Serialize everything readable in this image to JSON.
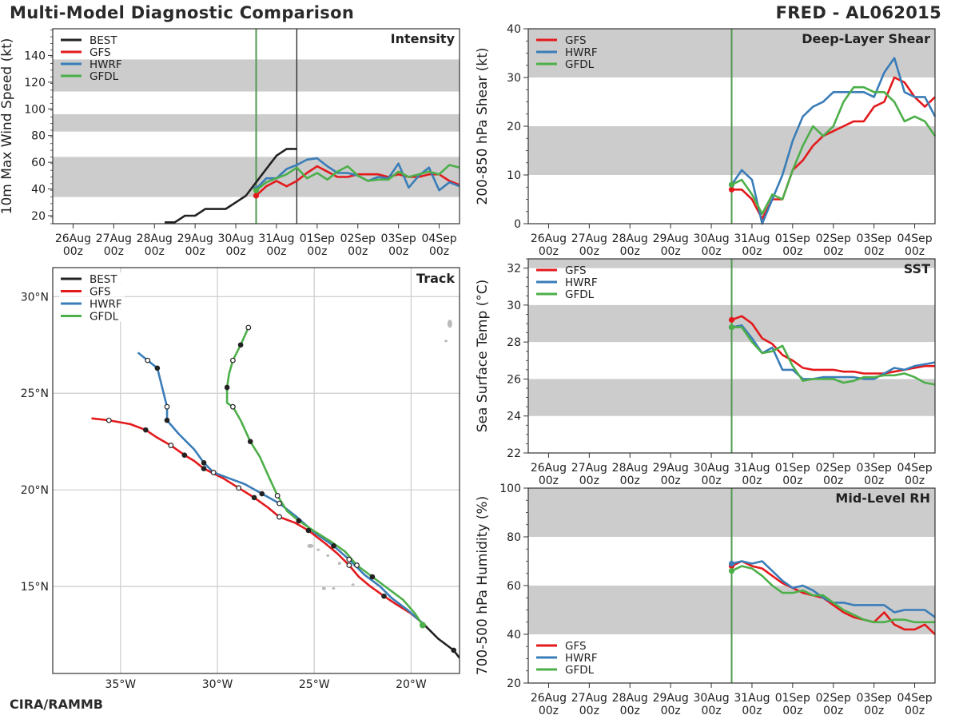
{
  "header": {
    "title": "Multi-Model Diagnostic Comparison",
    "storm": "FRED - AL062015"
  },
  "footer": {
    "credit": "CIRA/RAMMB"
  },
  "colors": {
    "BEST": "#222222",
    "GFS": "#e31a1c",
    "HWRF": "#3a7db8",
    "GFDL": "#4daf4a",
    "shade": "#cccccc",
    "grid": "#cccccc",
    "init_line": "#4f9a4f"
  },
  "time_axis": {
    "ticks": [
      {
        "t": 0,
        "day": "26Aug",
        "hr": "00z"
      },
      {
        "t": 1,
        "day": "27Aug",
        "hr": "00z"
      },
      {
        "t": 2,
        "day": "28Aug",
        "hr": "00z"
      },
      {
        "t": 3,
        "day": "29Aug",
        "hr": "00z"
      },
      {
        "t": 4,
        "day": "30Aug",
        "hr": "00z"
      },
      {
        "t": 5,
        "day": "31Aug",
        "hr": "00z"
      },
      {
        "t": 6,
        "day": "01Sep",
        "hr": "00z"
      },
      {
        "t": 7,
        "day": "02Sep",
        "hr": "00z"
      },
      {
        "t": 8,
        "day": "03Sep",
        "hr": "00z"
      },
      {
        "t": 9,
        "day": "04Sep",
        "hr": "00z"
      }
    ],
    "range": [
      -0.5,
      9.5
    ],
    "init_time": 4.5,
    "latest_time": 5.5
  },
  "chart_data": [
    {
      "id": "intensity",
      "type": "line",
      "title": "Intensity",
      "ylabel": "10m Max Wind Speed (kt)",
      "ylim": [
        14,
        160
      ],
      "yticks": [
        20,
        40,
        60,
        80,
        100,
        120,
        140
      ],
      "bands": [
        [
          34,
          64
        ],
        [
          83,
          96
        ],
        [
          113,
          137
        ]
      ],
      "legend": {
        "position": "top-left",
        "entries": [
          "BEST",
          "GFS",
          "HWRF",
          "GFDL"
        ]
      },
      "series": [
        {
          "name": "BEST",
          "t": [
            2.25,
            2.5,
            2.75,
            3.0,
            3.25,
            3.5,
            3.75,
            4.0,
            4.25,
            4.5,
            4.75,
            5.0,
            5.25,
            5.5
          ],
          "v": [
            15,
            15,
            20,
            20,
            25,
            25,
            25,
            30,
            35,
            45,
            55,
            65,
            70,
            70
          ]
        },
        {
          "name": "GFS",
          "t": [
            4.5,
            4.75,
            5.0,
            5.25,
            5.5,
            5.75,
            6.0,
            6.25,
            6.5,
            6.75,
            7.0,
            7.25,
            7.5,
            7.75,
            8.0,
            8.25,
            8.5,
            8.75,
            9.0,
            9.25,
            9.5
          ],
          "v": [
            35,
            42,
            46,
            42,
            46,
            52,
            57,
            53,
            49,
            49,
            51,
            51,
            51,
            49,
            51,
            49,
            49,
            51,
            51,
            46,
            43
          ]
        },
        {
          "name": "HWRF",
          "t": [
            4.5,
            4.75,
            5.0,
            5.25,
            5.5,
            5.75,
            6.0,
            6.25,
            6.5,
            6.75,
            7.0,
            7.25,
            7.5,
            7.75,
            8.0,
            8.25,
            8.5,
            8.75,
            9.0,
            9.25,
            9.5
          ],
          "v": [
            40,
            48,
            48,
            55,
            58,
            62,
            63,
            57,
            52,
            52,
            50,
            46,
            49,
            48,
            59,
            41,
            50,
            56,
            39,
            45,
            42
          ]
        },
        {
          "name": "GFDL",
          "t": [
            4.5,
            4.75,
            5.0,
            5.25,
            5.5,
            5.75,
            6.0,
            6.25,
            6.5,
            6.75,
            7.0,
            7.25,
            7.5,
            7.75,
            8.0,
            8.25,
            8.5,
            8.75,
            9.0,
            9.25,
            9.5
          ],
          "v": [
            39,
            45,
            48,
            51,
            56,
            48,
            52,
            47,
            53,
            57,
            50,
            46,
            47,
            47,
            53,
            49,
            51,
            53,
            51,
            58,
            56
          ]
        }
      ]
    },
    {
      "id": "shear",
      "type": "line",
      "title": "Deep-Layer Shear",
      "ylabel": "200-850 hPa Shear (kt)",
      "ylim": [
        0,
        40
      ],
      "yticks": [
        0,
        10,
        20,
        30,
        40
      ],
      "bands": [
        [
          10,
          20
        ],
        [
          30,
          40
        ]
      ],
      "legend": {
        "position": "top-left",
        "entries": [
          "GFS",
          "HWRF",
          "GFDL"
        ]
      },
      "series": [
        {
          "name": "GFS",
          "t": [
            4.5,
            4.75,
            5.0,
            5.25,
            5.5,
            5.75,
            6.0,
            6.25,
            6.5,
            6.75,
            7.0,
            7.25,
            7.5,
            7.75,
            8.0,
            8.25,
            8.5,
            8.75,
            9.0,
            9.25,
            9.5
          ],
          "v": [
            7,
            7,
            5,
            1,
            5,
            5,
            11,
            13,
            16,
            18,
            19,
            20,
            21,
            21,
            24,
            25,
            30,
            29,
            26,
            24,
            26
          ]
        },
        {
          "name": "HWRF",
          "t": [
            4.5,
            4.75,
            5.0,
            5.25,
            5.5,
            5.75,
            6.0,
            6.25,
            6.5,
            6.75,
            7.0,
            7.25,
            7.5,
            7.75,
            8.0,
            8.25,
            8.5,
            8.75,
            9.0,
            9.25,
            9.5
          ],
          "v": [
            8,
            11,
            9,
            0,
            5,
            10,
            17,
            22,
            24,
            25,
            27,
            27,
            27,
            27,
            26,
            31,
            34,
            27,
            26,
            26,
            22
          ]
        },
        {
          "name": "GFDL",
          "t": [
            4.5,
            4.75,
            5.0,
            5.25,
            5.5,
            5.75,
            6.0,
            6.25,
            6.5,
            6.75,
            7.0,
            7.25,
            7.5,
            7.75,
            8.0,
            8.25,
            8.5,
            8.75,
            9.0,
            9.25,
            9.5
          ],
          "v": [
            8,
            9,
            6,
            2,
            6,
            5,
            11,
            16,
            20,
            18,
            20,
            25,
            28,
            28,
            27,
            27,
            25,
            21,
            22,
            21,
            18
          ]
        }
      ]
    },
    {
      "id": "sst",
      "type": "line",
      "title": "SST",
      "ylabel": "Sea Surface Temp (°C)",
      "ylim": [
        22,
        32.5
      ],
      "yticks": [
        22,
        24,
        26,
        28,
        30,
        32
      ],
      "bands": [
        [
          24,
          26
        ],
        [
          28,
          30
        ],
        [
          32,
          32.5
        ]
      ],
      "legend": {
        "position": "top-left",
        "entries": [
          "GFS",
          "HWRF",
          "GFDL"
        ]
      },
      "series": [
        {
          "name": "GFS",
          "t": [
            4.5,
            4.75,
            5.0,
            5.25,
            5.5,
            5.75,
            6.0,
            6.25,
            6.5,
            6.75,
            7.0,
            7.25,
            7.5,
            7.75,
            8.0,
            8.25,
            8.5,
            8.75,
            9.0,
            9.25,
            9.5
          ],
          "v": [
            29.2,
            29.4,
            29.0,
            28.2,
            27.9,
            27.3,
            27.0,
            26.6,
            26.5,
            26.5,
            26.5,
            26.4,
            26.4,
            26.3,
            26.3,
            26.3,
            26.4,
            26.5,
            26.6,
            26.7,
            26.7
          ]
        },
        {
          "name": "HWRF",
          "t": [
            4.5,
            4.75,
            5.0,
            5.25,
            5.5,
            5.75,
            6.0,
            6.25,
            6.5,
            6.75,
            7.0,
            7.25,
            7.5,
            7.75,
            8.0,
            8.25,
            8.5,
            8.75,
            9.0,
            9.25,
            9.5
          ],
          "v": [
            28.8,
            28.9,
            28.2,
            27.4,
            27.7,
            26.5,
            26.5,
            26.0,
            26.0,
            26.1,
            26.1,
            26.1,
            26.1,
            26.0,
            26.0,
            26.3,
            26.6,
            26.5,
            26.7,
            26.8,
            26.9
          ]
        },
        {
          "name": "GFDL",
          "t": [
            4.5,
            4.75,
            5.0,
            5.25,
            5.5,
            5.75,
            6.0,
            6.25,
            6.5,
            6.75,
            7.0,
            7.25,
            7.5,
            7.75,
            8.0,
            8.25,
            8.5,
            8.75,
            9.0,
            9.25,
            9.5
          ],
          "v": [
            28.8,
            28.8,
            28.0,
            27.4,
            27.5,
            27.8,
            26.7,
            25.9,
            26.0,
            26.0,
            26.0,
            25.8,
            25.9,
            26.1,
            26.1,
            26.2,
            26.2,
            26.3,
            26.1,
            25.8,
            25.7
          ]
        }
      ]
    },
    {
      "id": "rh",
      "type": "line",
      "title": "Mid-Level RH",
      "ylabel": "700-500 hPa Humidity (%)",
      "ylim": [
        20,
        100
      ],
      "yticks": [
        20,
        40,
        60,
        80,
        100
      ],
      "bands": [
        [
          40,
          60
        ],
        [
          80,
          100
        ]
      ],
      "legend": {
        "position": "bottom-left",
        "entries": [
          "GFS",
          "HWRF",
          "GFDL"
        ]
      },
      "series": [
        {
          "name": "GFS",
          "t": [
            4.5,
            4.75,
            5.0,
            5.25,
            5.5,
            5.75,
            6.0,
            6.25,
            6.5,
            6.75,
            7.0,
            7.25,
            7.5,
            7.75,
            8.0,
            8.25,
            8.5,
            8.75,
            9.0,
            9.25,
            9.5
          ],
          "v": [
            68,
            70,
            68,
            67,
            64,
            61,
            59,
            57,
            56,
            55,
            52,
            49,
            47,
            46,
            45,
            49,
            44,
            42,
            42,
            44,
            40
          ]
        },
        {
          "name": "HWRF",
          "t": [
            4.5,
            4.75,
            5.0,
            5.25,
            5.5,
            5.75,
            6.0,
            6.25,
            6.5,
            6.75,
            7.0,
            7.25,
            7.5,
            7.75,
            8.0,
            8.25,
            8.5,
            8.75,
            9.0,
            9.25,
            9.5
          ],
          "v": [
            69,
            70,
            69,
            70,
            66,
            62,
            59,
            60,
            58,
            55,
            53,
            53,
            52,
            52,
            52,
            52,
            49,
            50,
            50,
            50,
            47
          ]
        },
        {
          "name": "GFDL",
          "t": [
            4.5,
            4.75,
            5.0,
            5.25,
            5.5,
            5.75,
            6.0,
            6.25,
            6.5,
            6.75,
            7.0,
            7.25,
            7.5,
            7.75,
            8.0,
            8.25,
            8.5,
            8.75,
            9.0,
            9.25,
            9.5
          ],
          "v": [
            66,
            68,
            67,
            64,
            60,
            57,
            57,
            58,
            56,
            56,
            53,
            50,
            48,
            46,
            45,
            45,
            46,
            46,
            45,
            45,
            45
          ]
        }
      ]
    },
    {
      "id": "track",
      "type": "line",
      "title": "Track",
      "xlim": [
        -38.5,
        -17.5
      ],
      "ylim": [
        10.5,
        31.5
      ],
      "xticks": [
        {
          "v": -35,
          "label": "35°W"
        },
        {
          "v": -30,
          "label": "30°W"
        },
        {
          "v": -25,
          "label": "25°W"
        },
        {
          "v": -20,
          "label": "20°W"
        }
      ],
      "yticks": [
        {
          "v": 15,
          "label": "15°N"
        },
        {
          "v": 20,
          "label": "20°N"
        },
        {
          "v": 25,
          "label": "25°N"
        },
        {
          "v": 30,
          "label": "30°N"
        }
      ],
      "legend": {
        "position": "top-left",
        "entries": [
          "BEST",
          "GFS",
          "HWRF",
          "GFDL"
        ]
      },
      "series": [
        {
          "name": "BEST",
          "lon": [
            -17.5,
            -17.8,
            -18.6,
            -19.4
          ],
          "lat": [
            11.3,
            11.7,
            12.3,
            13.1
          ],
          "filled": [
            1
          ],
          "open": []
        },
        {
          "name": "GFS",
          "lon": [
            -19.4,
            -20.0,
            -20.8,
            -21.4,
            -22.1,
            -22.7,
            -23.2,
            -23.8,
            -24.4,
            -25.3,
            -26.0,
            -26.8,
            -27.4,
            -28.1,
            -28.9,
            -29.7,
            -30.7,
            -31.2,
            -31.7,
            -32.4,
            -33.1,
            -33.7,
            -34.5,
            -35.6,
            -36.5
          ],
          "lat": [
            13.1,
            13.6,
            14.1,
            14.5,
            15.0,
            15.5,
            16.1,
            16.7,
            17.2,
            17.9,
            18.3,
            18.6,
            19.1,
            19.6,
            20.1,
            20.6,
            21.1,
            21.5,
            21.8,
            22.3,
            22.7,
            23.1,
            23.4,
            23.6,
            23.7
          ],
          "filled": [
            3,
            9,
            13,
            16,
            18,
            21
          ],
          "open": [
            6,
            11,
            14,
            19,
            23
          ]
        },
        {
          "name": "HWRF",
          "lon": [
            -19.4,
            -20.2,
            -21.0,
            -21.6,
            -22.4,
            -23.2,
            -24.0,
            -25.0,
            -25.9,
            -26.8,
            -27.7,
            -28.6,
            -29.4,
            -30.2,
            -30.7,
            -31.2,
            -32.0,
            -32.6,
            -32.6,
            -33.1,
            -33.6,
            -34.1
          ],
          "lat": [
            13.1,
            13.8,
            14.4,
            15.0,
            15.6,
            16.4,
            17.1,
            17.8,
            18.6,
            19.3,
            19.8,
            20.3,
            20.6,
            20.9,
            21.4,
            22.1,
            22.9,
            23.6,
            24.3,
            26.3,
            26.7,
            27.1
          ],
          "filled": [
            6,
            10,
            14,
            17,
            19
          ],
          "open": [
            5,
            9,
            13,
            18,
            20
          ]
        },
        {
          "name": "GFDL",
          "lon": [
            -19.4,
            -19.8,
            -20.4,
            -21.2,
            -22.0,
            -22.8,
            -23.4,
            -24.1,
            -24.9,
            -25.8,
            -26.4,
            -26.9,
            -27.4,
            -27.8,
            -28.3,
            -28.8,
            -29.2,
            -29.5,
            -29.5,
            -29.4,
            -29.2,
            -28.8,
            -28.4
          ],
          "lat": [
            13.0,
            13.6,
            14.3,
            14.9,
            15.5,
            16.1,
            16.8,
            17.3,
            17.8,
            18.4,
            18.9,
            19.7,
            20.8,
            21.7,
            22.5,
            23.6,
            24.3,
            24.5,
            25.3,
            26.0,
            26.7,
            27.5,
            28.4
          ],
          "filled": [
            4,
            9,
            14,
            18,
            21
          ],
          "open": [
            5,
            11,
            16,
            20,
            22
          ]
        }
      ]
    }
  ]
}
